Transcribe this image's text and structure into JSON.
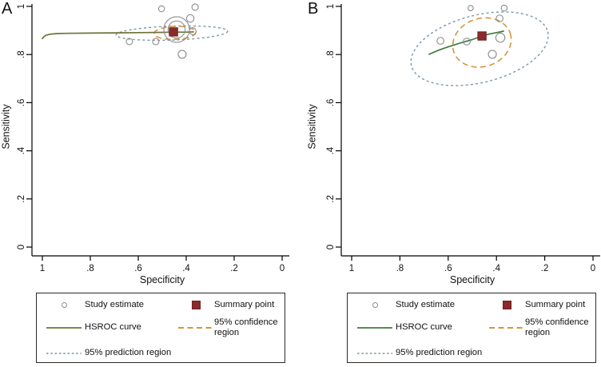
{
  "legend": {
    "study_estimate": "Study estimate",
    "summary_point": "Summary point",
    "hsroc_curve": "HSROC curve",
    "confidence_region": "95% confidence region",
    "prediction_region": "95% prediction region"
  },
  "colors": {
    "background": "#ffffff",
    "axis": "#000000",
    "text": "#111111",
    "study_circle": "#8c8c8c",
    "summary_point": "#8b2a2a",
    "summary_point_border": "#6e2020",
    "confidence_region": "#d4953c",
    "prediction_region": "#7d96a5",
    "hsroc_curve_a": "#6e7339",
    "hsroc_curve_b": "#3f7b3f"
  },
  "chart_data": [
    {
      "type": "scatter",
      "panel_label": "A",
      "xlabel": "Specificity",
      "ylabel": "Sensitivity",
      "xlim": [
        1,
        0
      ],
      "ylim": [
        0,
        1
      ],
      "x_ticks": [
        1,
        0.8,
        0.6,
        0.4,
        0.2,
        0
      ],
      "x_tick_labels": [
        "1",
        ".8",
        ".6",
        ".4",
        ".2",
        "0"
      ],
      "y_ticks": [
        0,
        0.2,
        0.4,
        0.6,
        0.8,
        1
      ],
      "y_tick_labels": [
        "0",
        ".2",
        ".4",
        ".6",
        ".8",
        "1"
      ],
      "studies": [
        {
          "specificity": 0.503,
          "sensitivity": 0.99,
          "size": 3.7
        },
        {
          "specificity": 0.363,
          "sensitivity": 0.997,
          "size": 4.0
        },
        {
          "specificity": 0.383,
          "sensitivity": 0.95,
          "size": 4.7
        },
        {
          "specificity": 0.44,
          "sensitivity": 0.904,
          "size": 16.0
        },
        {
          "specificity": 0.44,
          "sensitivity": 0.904,
          "size": 10.7
        },
        {
          "specificity": 0.373,
          "sensitivity": 0.897,
          "size": 4.3
        },
        {
          "specificity": 0.637,
          "sensitivity": 0.854,
          "size": 4.0
        },
        {
          "specificity": 0.527,
          "sensitivity": 0.854,
          "size": 4.0
        },
        {
          "specificity": 0.417,
          "sensitivity": 0.801,
          "size": 5.0
        }
      ],
      "summary_point": {
        "specificity": 0.453,
        "sensitivity": 0.894
      },
      "hsroc_curve": [
        [
          1.0,
          0.866
        ],
        [
          0.995,
          0.873
        ],
        [
          0.985,
          0.88
        ],
        [
          0.97,
          0.884
        ],
        [
          0.94,
          0.887
        ],
        [
          0.9,
          0.888
        ],
        [
          0.8,
          0.889
        ],
        [
          0.7,
          0.89
        ],
        [
          0.6,
          0.891
        ],
        [
          0.5,
          0.892
        ],
        [
          0.45,
          0.893
        ],
        [
          0.4,
          0.893
        ],
        [
          0.37,
          0.894
        ]
      ],
      "confidence_ellipse": {
        "cx": 0.447,
        "cy": 0.89,
        "rx": 0.087,
        "ry": 0.027,
        "rotation_deg": -2
      },
      "prediction_ellipse": {
        "cx": 0.46,
        "cy": 0.889,
        "rx": 0.233,
        "ry": 0.029,
        "rotation_deg": -2
      },
      "curve_color": "#6e7339"
    },
    {
      "type": "scatter",
      "panel_label": "B",
      "xlabel": "Specificity",
      "ylabel": "Sensitivity",
      "xlim": [
        1,
        0
      ],
      "ylim": [
        0,
        1
      ],
      "x_ticks": [
        1,
        0.8,
        0.6,
        0.4,
        0.2,
        0
      ],
      "x_tick_labels": [
        "1",
        ".8",
        ".6",
        ".4",
        ".2",
        "0"
      ],
      "y_ticks": [
        0,
        0.2,
        0.4,
        0.6,
        0.8,
        1
      ],
      "y_tick_labels": [
        "0",
        ".2",
        ".4",
        ".6",
        ".8",
        "1"
      ],
      "studies": [
        {
          "specificity": 0.507,
          "sensitivity": 0.993,
          "size": 3.3
        },
        {
          "specificity": 0.368,
          "sensitivity": 0.993,
          "size": 3.7
        },
        {
          "specificity": 0.387,
          "sensitivity": 0.95,
          "size": 4.3
        },
        {
          "specificity": 0.632,
          "sensitivity": 0.857,
          "size": 4.3
        },
        {
          "specificity": 0.523,
          "sensitivity": 0.854,
          "size": 4.3
        },
        {
          "specificity": 0.384,
          "sensitivity": 0.87,
          "size": 5.7
        },
        {
          "specificity": 0.417,
          "sensitivity": 0.801,
          "size": 5.0
        }
      ],
      "summary_point": {
        "specificity": 0.46,
        "sensitivity": 0.877
      },
      "hsroc_curve": [
        [
          0.679,
          0.801
        ],
        [
          0.64,
          0.818
        ],
        [
          0.6,
          0.832
        ],
        [
          0.55,
          0.848
        ],
        [
          0.5,
          0.862
        ],
        [
          0.46,
          0.877
        ],
        [
          0.43,
          0.885
        ],
        [
          0.4,
          0.891
        ],
        [
          0.371,
          0.897
        ]
      ],
      "confidence_ellipse": {
        "cx": 0.46,
        "cy": 0.85,
        "rx": 0.123,
        "ry": 0.1,
        "rotation_deg": -18
      },
      "prediction_ellipse": {
        "cx": 0.47,
        "cy": 0.824,
        "rx": 0.291,
        "ry": 0.14,
        "rotation_deg": -14
      },
      "curve_color": "#3f7b3f"
    }
  ]
}
